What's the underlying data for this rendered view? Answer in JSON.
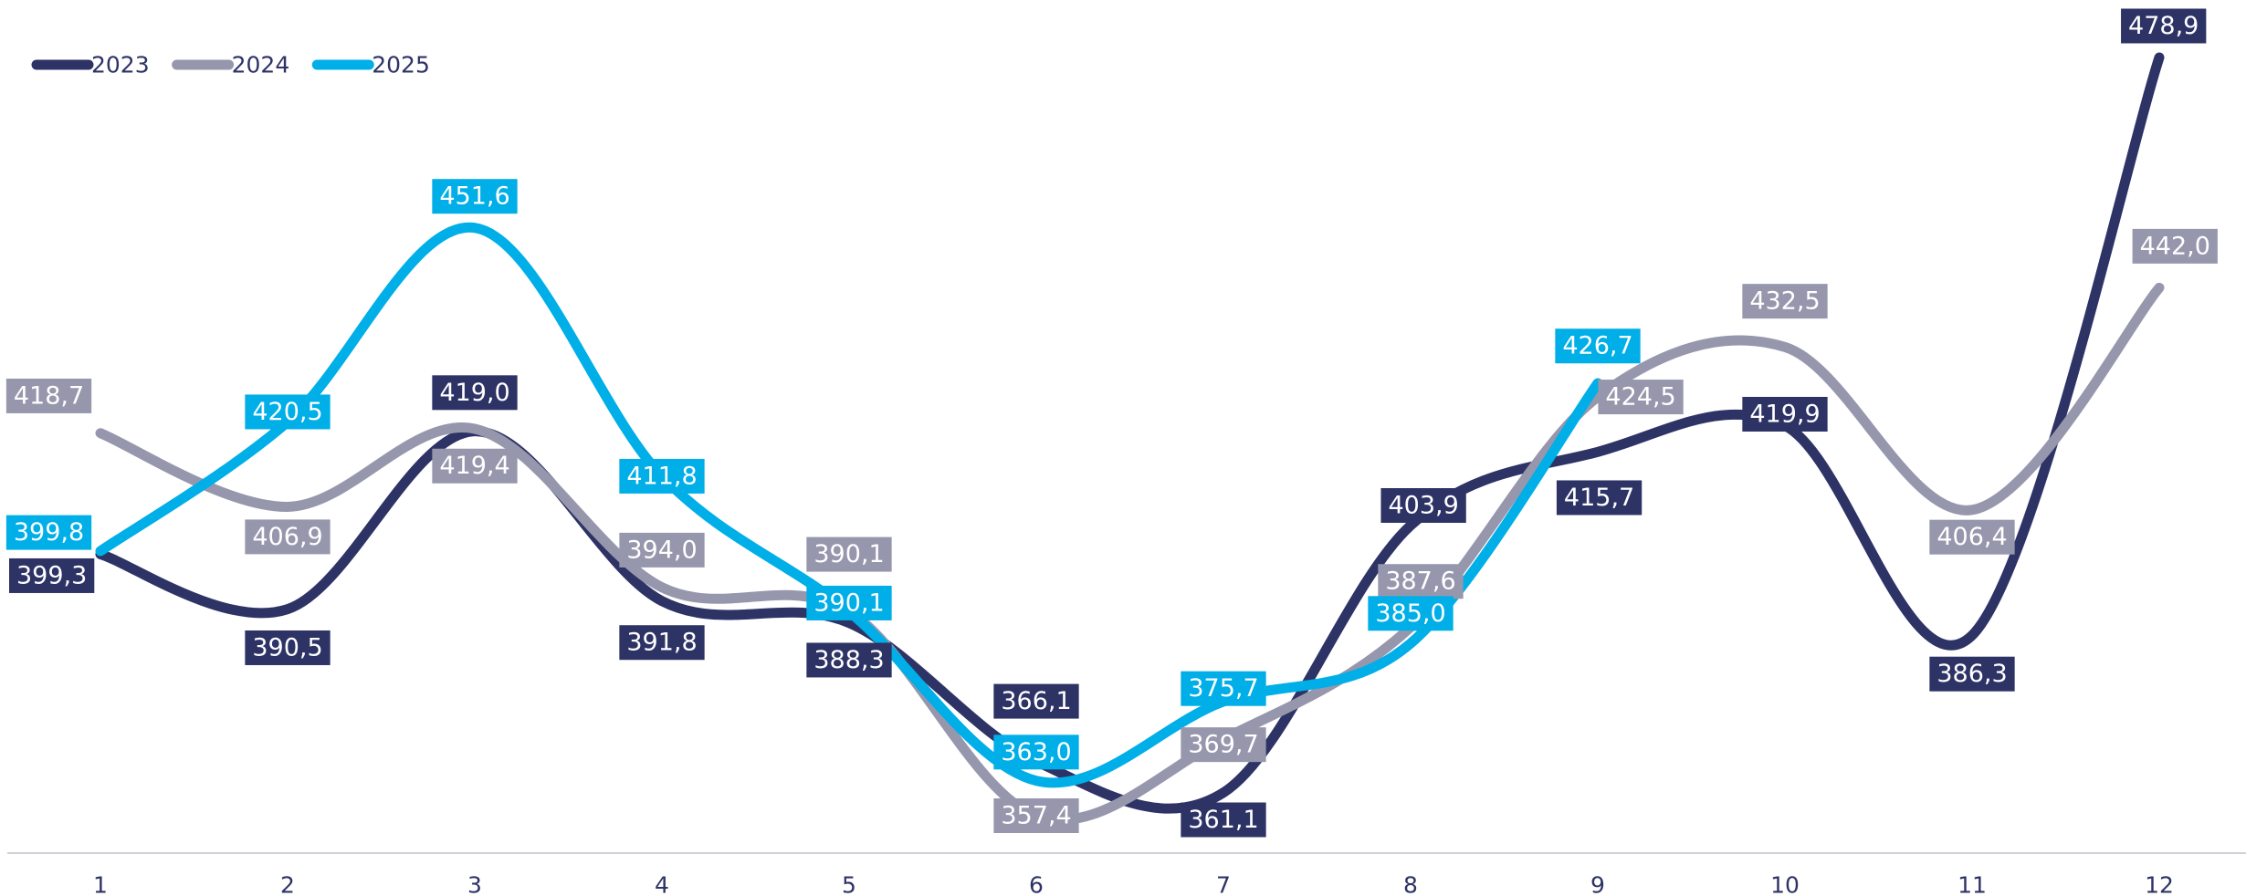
{
  "chart_data": {
    "type": "line",
    "categories": [
      "1",
      "2",
      "3",
      "4",
      "5",
      "6",
      "7",
      "8",
      "9",
      "10",
      "11",
      "12"
    ],
    "series": [
      {
        "name": "2023",
        "color": "#2e3366",
        "values": [
          399.3,
          390.5,
          419.0,
          391.8,
          388.3,
          366.1,
          361.1,
          403.9,
          415.7,
          419.9,
          386.3,
          478.9
        ],
        "value_labels": [
          "399,3",
          "390,5",
          "419,0",
          "391,8",
          "388,3",
          "366,1",
          "361,1",
          "403,9",
          "415,7",
          "419,9",
          "386,3",
          "478,9"
        ]
      },
      {
        "name": "2024",
        "color": "#9697ad",
        "values": [
          418.7,
          406.9,
          419.4,
          394.0,
          390.1,
          357.4,
          369.7,
          387.6,
          424.5,
          432.5,
          406.4,
          442.0
        ],
        "value_labels": [
          "418,7",
          "406,9",
          "419,4",
          "394,0",
          "390,1",
          "357,4",
          "369,7",
          "387,6",
          "424,5",
          "432,5",
          "406,4",
          "442,0"
        ]
      },
      {
        "name": "2025",
        "color": "#00aee8",
        "values": [
          399.8,
          420.5,
          451.6,
          411.8,
          390.1,
          363.0,
          375.7,
          385.0,
          426.7,
          null,
          null,
          null
        ],
        "value_labels": [
          "399,8",
          "420,5",
          "451,6",
          "411,8",
          "390,1",
          "363,0",
          "375,7",
          "385,0",
          "426,7",
          null,
          null,
          null
        ]
      }
    ],
    "legend": "top-left"
  }
}
